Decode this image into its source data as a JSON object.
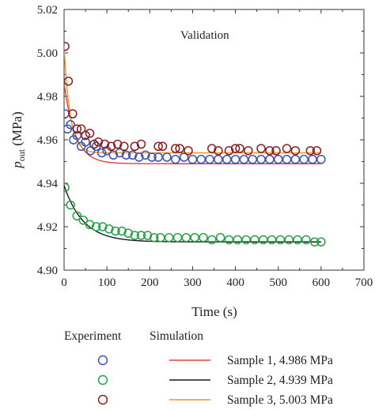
{
  "chart_data": {
    "type": "scatter",
    "annotation": "Validation",
    "xlabel": "Time (s)",
    "ylabel_main": "p",
    "ylabel_sub": "out",
    "ylabel_unit": " (MPa)",
    "xlim": [
      0,
      700
    ],
    "ylim": [
      4.9,
      5.02
    ],
    "xticks": [
      0,
      100,
      200,
      300,
      400,
      500,
      600,
      700
    ],
    "yticks": [
      4.9,
      4.92,
      4.94,
      4.96,
      4.98,
      5.0,
      5.02
    ],
    "grid": false,
    "legend": {
      "header_experiment": "Experiment",
      "header_simulation": "Simulation",
      "placement": "bottom"
    },
    "series": [
      {
        "name": "Sample 1, 4.986 MPa",
        "marker_color": "#3b55b5",
        "line_color": "#e8403a",
        "experiment": {
          "x": [
            2,
            8,
            15,
            22,
            30,
            40,
            50,
            62,
            75,
            88,
            100,
            115,
            130,
            145,
            160,
            175,
            190,
            205,
            220,
            240,
            260,
            280,
            300,
            320,
            340,
            360,
            380,
            400,
            420,
            440,
            460,
            480,
            500,
            520,
            540,
            560,
            580,
            600
          ],
          "y": [
            4.972,
            4.965,
            4.967,
            4.96,
            4.962,
            4.957,
            4.959,
            4.955,
            4.957,
            4.954,
            4.955,
            4.953,
            4.954,
            4.953,
            4.953,
            4.952,
            4.953,
            4.952,
            4.952,
            4.952,
            4.951,
            4.952,
            4.951,
            4.951,
            4.951,
            4.951,
            4.951,
            4.951,
            4.951,
            4.951,
            4.951,
            4.951,
            4.951,
            4.951,
            4.951,
            4.951,
            4.951,
            4.951
          ]
        },
        "simulation": {
          "y0": 4.986,
          "y_inf": 4.949,
          "tau": 26
        }
      },
      {
        "name": "Sample 2, 4.939 MPa",
        "marker_color": "#27a048",
        "line_color": "#1a1a1a",
        "experiment": {
          "x": [
            2,
            15,
            30,
            45,
            60,
            75,
            90,
            105,
            120,
            135,
            150,
            165,
            180,
            195,
            210,
            225,
            245,
            265,
            285,
            305,
            325,
            345,
            365,
            385,
            405,
            425,
            445,
            465,
            485,
            505,
            525,
            545,
            565,
            585,
            600
          ],
          "y": [
            4.938,
            4.93,
            4.925,
            4.923,
            4.921,
            4.92,
            4.92,
            4.919,
            4.918,
            4.918,
            4.917,
            4.916,
            4.916,
            4.916,
            4.915,
            4.915,
            4.915,
            4.915,
            4.915,
            4.915,
            4.915,
            4.914,
            4.915,
            4.914,
            4.914,
            4.914,
            4.914,
            4.914,
            4.914,
            4.914,
            4.914,
            4.914,
            4.914,
            4.913,
            4.913
          ]
        },
        "simulation": {
          "y0": 4.939,
          "y_inf": 4.913,
          "tau": 45
        }
      },
      {
        "name": "Sample 3, 5.003 MPa",
        "marker_color": "#8b1e1e",
        "line_color": "#f0962a",
        "experiment": {
          "x": [
            2,
            10,
            20,
            30,
            40,
            50,
            60,
            70,
            80,
            95,
            110,
            125,
            140,
            165,
            180,
            220,
            230,
            260,
            270,
            290,
            345,
            360,
            385,
            400,
            410,
            430,
            460,
            480,
            495,
            520,
            540,
            575,
            590
          ],
          "y": [
            5.003,
            4.987,
            4.972,
            4.965,
            4.965,
            4.962,
            4.963,
            4.958,
            4.959,
            4.958,
            4.957,
            4.958,
            4.957,
            4.957,
            4.958,
            4.957,
            4.957,
            4.956,
            4.956,
            4.955,
            4.956,
            4.955,
            4.955,
            4.956,
            4.956,
            4.955,
            4.956,
            4.955,
            4.955,
            4.956,
            4.955,
            4.955,
            4.955
          ]
        },
        "simulation": {
          "y0": 5.003,
          "y_inf": 4.954,
          "tau": 14
        }
      }
    ]
  }
}
